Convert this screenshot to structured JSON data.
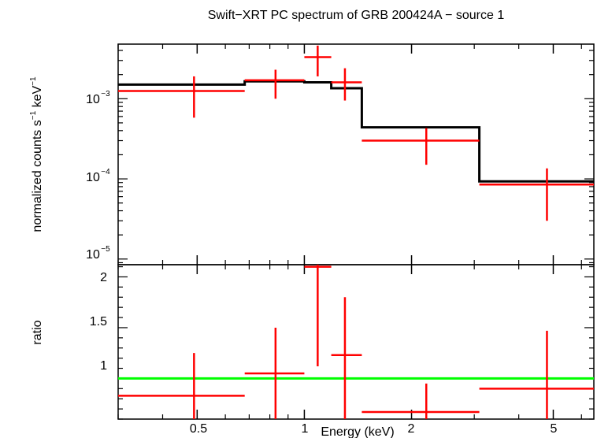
{
  "chart_data": [
    {
      "type": "scatter",
      "panel": "top",
      "title": "Swift−XRT PC spectrum of GRB 200424A − source 1",
      "xlabel": "Energy (keV)",
      "ylabel_main": "normalized counts s",
      "ylabel_sup1": "−1",
      "ylabel_mid": " keV",
      "ylabel_sup2": "−1",
      "x_scale": "log",
      "y_scale": "log",
      "xlim": [
        0.3,
        6.5
      ],
      "ylim": [
        8.5e-06,
        0.0048
      ],
      "y_ticks": [
        {
          "value": 0.001,
          "mant": "10",
          "exp": "−3"
        },
        {
          "value": 0.0001,
          "mant": "10",
          "exp": "−4"
        },
        {
          "value": 1e-05,
          "mant": "10",
          "exp": "−5"
        }
      ],
      "series": [
        {
          "kind": "data",
          "color": "#ff0000",
          "points": [
            {
              "x": 0.49,
              "xlo": 0.3,
              "xhi": 0.68,
              "y": 0.00125,
              "ylo": 0.00058,
              "yhi": 0.0019
            },
            {
              "x": 0.83,
              "xlo": 0.68,
              "xhi": 1.0,
              "y": 0.0017,
              "ylo": 0.001,
              "yhi": 0.0023
            },
            {
              "x": 1.09,
              "xlo": 1.0,
              "xhi": 1.19,
              "y": 0.0033,
              "ylo": 0.0019,
              "yhi": 0.0046
            },
            {
              "x": 1.3,
              "xlo": 1.19,
              "xhi": 1.45,
              "y": 0.0016,
              "ylo": 0.00095,
              "yhi": 0.0024
            },
            {
              "x": 2.2,
              "xlo": 1.45,
              "xhi": 3.1,
              "y": 0.0003,
              "ylo": 0.00015,
              "yhi": 0.00043
            },
            {
              "x": 4.8,
              "xlo": 3.1,
              "xhi": 6.5,
              "y": 8.5e-05,
              "ylo": 3e-05,
              "yhi": 0.000135
            }
          ]
        },
        {
          "kind": "model",
          "color": "#000000",
          "steps": [
            {
              "xlo": 0.3,
              "xhi": 0.68,
              "y": 0.0015
            },
            {
              "xlo": 0.68,
              "xhi": 1.0,
              "y": 0.00165
            },
            {
              "xlo": 1.0,
              "xhi": 1.19,
              "y": 0.0016
            },
            {
              "xlo": 1.19,
              "xhi": 1.45,
              "y": 0.00135
            },
            {
              "xlo": 1.45,
              "xhi": 3.1,
              "y": 0.00044
            },
            {
              "xlo": 3.1,
              "xhi": 6.5,
              "y": 9.3e-05
            }
          ]
        }
      ]
    },
    {
      "type": "scatter",
      "panel": "bottom",
      "ylabel": "ratio",
      "x_scale": "log",
      "xlim": [
        0.3,
        6.5
      ],
      "ylim": [
        0.6,
        2.12
      ],
      "y_ticks": [
        "1",
        "1.5",
        "2"
      ],
      "x_ticks": [
        {
          "value": 0.5,
          "label": "0.5"
        },
        {
          "value": 1,
          "label": "1"
        },
        {
          "value": 2,
          "label": "2"
        },
        {
          "value": 5,
          "label": "5"
        }
      ],
      "reference_line": {
        "y": 1,
        "color": "#00ff00"
      },
      "series": [
        {
          "kind": "ratio",
          "color": "#ff0000",
          "points": [
            {
              "x": 0.49,
              "xlo": 0.3,
              "xhi": 0.68,
              "y": 0.83,
              "ylo": 0.6,
              "yhi": 1.25
            },
            {
              "x": 0.83,
              "xlo": 0.68,
              "xhi": 1.0,
              "y": 1.05,
              "ylo": 0.6,
              "yhi": 1.5
            },
            {
              "x": 1.09,
              "xlo": 1.0,
              "xhi": 1.19,
              "y": 2.1,
              "ylo": 1.12,
              "yhi": 2.12
            },
            {
              "x": 1.3,
              "xlo": 1.19,
              "xhi": 1.45,
              "y": 1.23,
              "ylo": 0.6,
              "yhi": 1.8
            },
            {
              "x": 2.2,
              "xlo": 1.45,
              "xhi": 3.1,
              "y": 0.67,
              "ylo": 0.6,
              "yhi": 0.95
            },
            {
              "x": 4.8,
              "xlo": 3.1,
              "xhi": 6.5,
              "y": 0.9,
              "ylo": 0.6,
              "yhi": 1.47
            }
          ]
        }
      ]
    }
  ]
}
